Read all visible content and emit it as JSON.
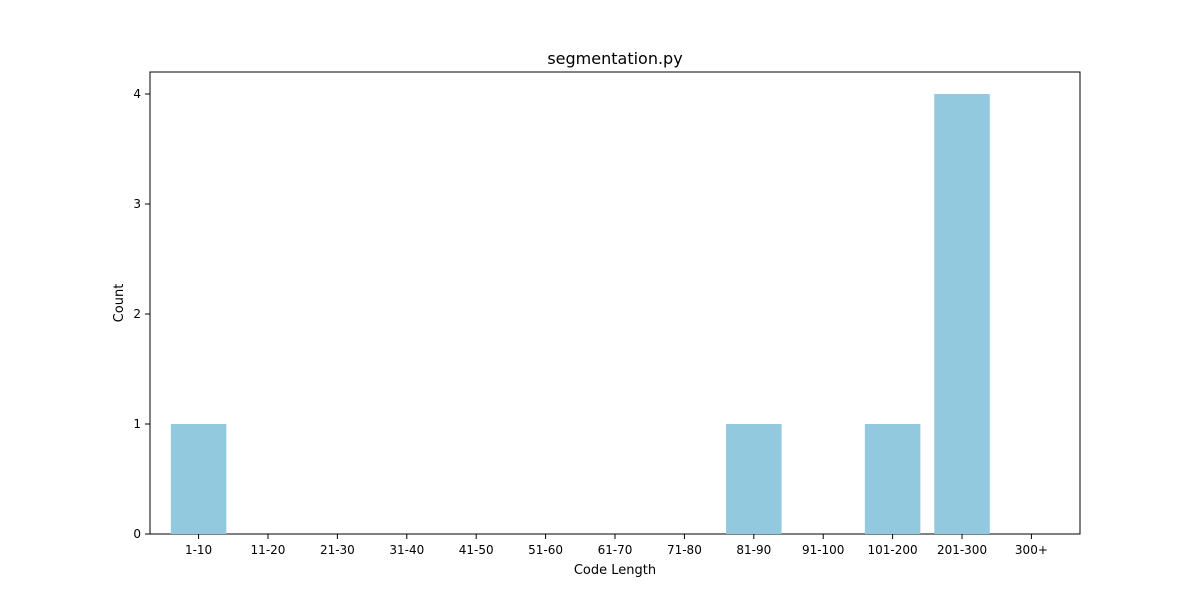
{
  "chart_data": {
    "type": "bar",
    "title": "segmentation.py",
    "xlabel": "Code Length",
    "ylabel": "Count",
    "categories": [
      "1-10",
      "11-20",
      "21-30",
      "31-40",
      "41-50",
      "51-60",
      "61-70",
      "71-80",
      "81-90",
      "91-100",
      "101-200",
      "201-300",
      "300+"
    ],
    "values": [
      1,
      0,
      0,
      0,
      0,
      0,
      0,
      0,
      1,
      0,
      1,
      4,
      0
    ],
    "ylim": [
      0,
      4.2
    ],
    "yticks": [
      0,
      1,
      2,
      3,
      4
    ],
    "grid": false,
    "bar_color": "#92c9de"
  }
}
